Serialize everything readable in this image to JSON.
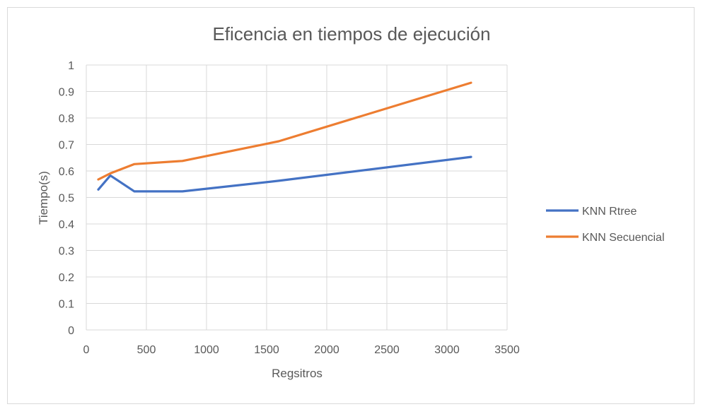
{
  "chart_data": {
    "type": "line",
    "title": "Eficencia en tiempos de ejecución",
    "xlabel": "Regsitros",
    "ylabel": "Tiempo(s)",
    "xlim": [
      0,
      3500
    ],
    "ylim": [
      0,
      1
    ],
    "x_ticks": [
      "0",
      "500",
      "1000",
      "1500",
      "2000",
      "2500",
      "3000",
      "3500"
    ],
    "y_ticks": [
      "0",
      "0.1",
      "0.2",
      "0.3",
      "0.4",
      "0.5",
      "0.6",
      "0.7",
      "0.8",
      "0.9",
      "1"
    ],
    "grid": true,
    "legend_position": "right",
    "series": [
      {
        "name": "KNN Rtree",
        "color": "#4472c4",
        "x": [
          100,
          200,
          400,
          800,
          1600,
          3200
        ],
        "y": [
          0.53,
          0.583,
          0.523,
          0.523,
          0.563,
          0.653
        ]
      },
      {
        "name": "KNN Secuencial",
        "color": "#ed7d31",
        "x": [
          100,
          200,
          400,
          800,
          1600,
          3200
        ],
        "y": [
          0.568,
          0.591,
          0.626,
          0.638,
          0.712,
          0.933
        ]
      }
    ]
  }
}
